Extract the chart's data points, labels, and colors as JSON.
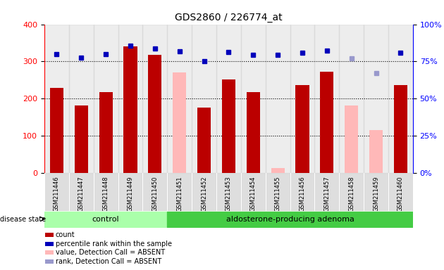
{
  "title": "GDS2860 / 226774_at",
  "samples": [
    "GSM211446",
    "GSM211447",
    "GSM211448",
    "GSM211449",
    "GSM211450",
    "GSM211451",
    "GSM211452",
    "GSM211453",
    "GSM211454",
    "GSM211455",
    "GSM211456",
    "GSM211457",
    "GSM211458",
    "GSM211459",
    "GSM211460"
  ],
  "counts": [
    228,
    182,
    218,
    340,
    318,
    null,
    175,
    252,
    218,
    null,
    237,
    272,
    null,
    null,
    237
  ],
  "absent_values": [
    null,
    null,
    null,
    null,
    null,
    270,
    null,
    null,
    null,
    12,
    null,
    null,
    182,
    115,
    null
  ],
  "percentile_ranks_pct": [
    80,
    77.5,
    80,
    85.8,
    83.8,
    82,
    75,
    81.3,
    79.5,
    79.5,
    80.8,
    82.5,
    null,
    null,
    80.8
  ],
  "absent_ranks_pct": [
    null,
    null,
    null,
    null,
    null,
    null,
    null,
    null,
    null,
    null,
    null,
    null,
    77,
    67,
    null
  ],
  "control_count": 5,
  "adenoma_count": 10,
  "ylim_left": [
    0,
    400
  ],
  "ylim_right": [
    0,
    100
  ],
  "bar_color_present": "#bb0000",
  "bar_color_absent": "#ffb8b8",
  "dot_color_present": "#0000bb",
  "dot_color_absent": "#9999cc",
  "col_bg_color": "#cccccc",
  "control_green": "#aaffaa",
  "adenoma_green": "#44cc44",
  "legend_items": [
    {
      "color": "#bb0000",
      "label": "count"
    },
    {
      "color": "#0000bb",
      "label": "percentile rank within the sample"
    },
    {
      "color": "#ffb8b8",
      "label": "value, Detection Call = ABSENT"
    },
    {
      "color": "#9999cc",
      "label": "rank, Detection Call = ABSENT"
    }
  ]
}
